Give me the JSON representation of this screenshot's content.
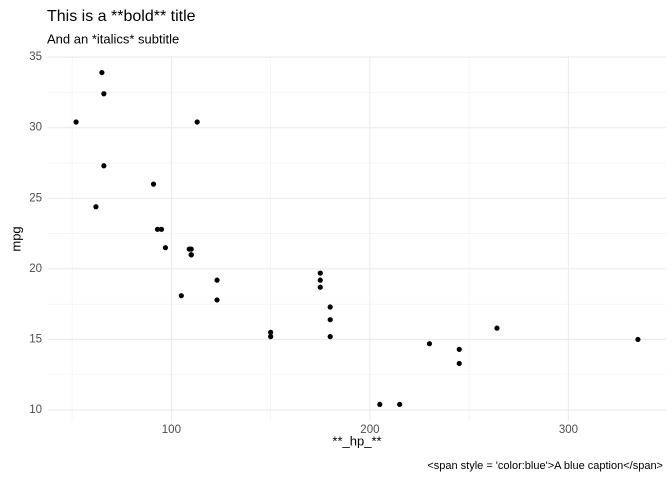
{
  "chart_data": {
    "type": "scatter",
    "title": "This is a **bold** title",
    "subtitle": "And an *italics* subtitle",
    "x_label": "**_hp_**",
    "y_label": "mpg",
    "caption": "<span style = 'color:blue'>A blue caption</span>",
    "x": [
      110,
      110,
      93,
      110,
      175,
      105,
      245,
      62,
      95,
      123,
      123,
      180,
      180,
      180,
      205,
      215,
      230,
      66,
      52,
      65,
      97,
      150,
      150,
      245,
      175,
      66,
      91,
      113,
      264,
      175,
      335,
      109
    ],
    "values": [
      21.0,
      21.0,
      22.8,
      21.4,
      18.7,
      18.1,
      14.3,
      24.4,
      22.8,
      19.2,
      17.8,
      16.4,
      17.3,
      15.2,
      10.4,
      10.4,
      14.7,
      32.4,
      30.4,
      33.9,
      21.5,
      15.5,
      15.2,
      13.3,
      19.2,
      27.3,
      26.0,
      30.4,
      15.8,
      19.7,
      15.0,
      21.4
    ],
    "color": "#000000",
    "xlim": [
      37.85,
      349.15
    ],
    "ylim": [
      9.225,
      35.075
    ],
    "xticks": [
      100,
      200,
      300
    ],
    "yticks": [
      10,
      15,
      20,
      25,
      30,
      35
    ],
    "grid": true
  }
}
